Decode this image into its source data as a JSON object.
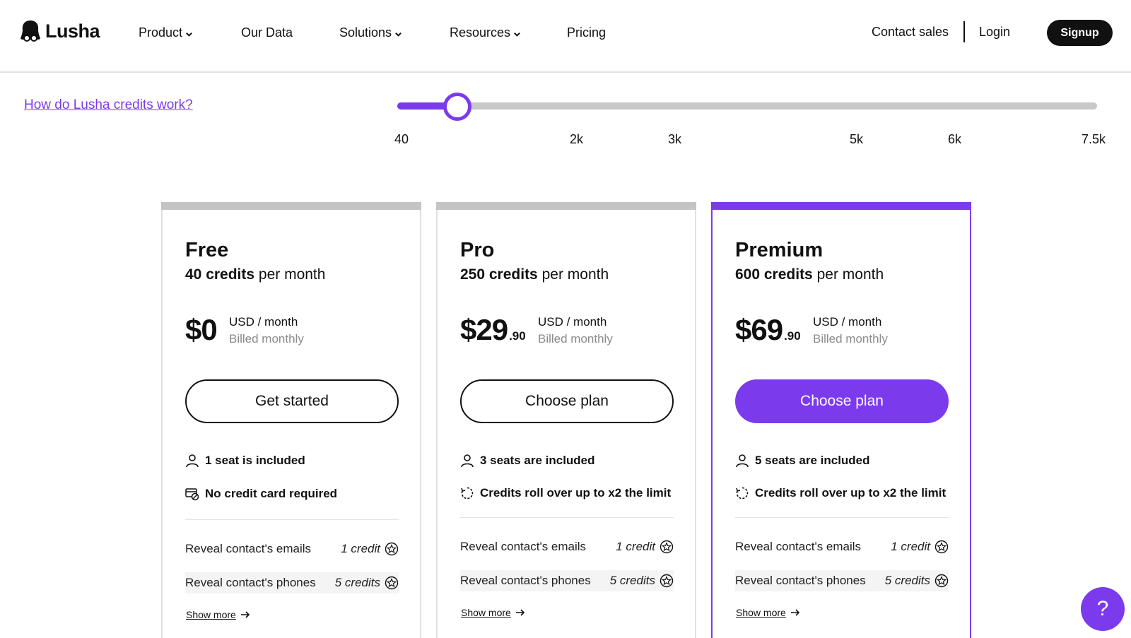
{
  "brand": {
    "name": "Lusha",
    "accent": "#7c3aed"
  },
  "nav": {
    "items": [
      {
        "label": "Product",
        "has_dropdown": true
      },
      {
        "label": "Our Data",
        "has_dropdown": false
      },
      {
        "label": "Solutions",
        "has_dropdown": true
      },
      {
        "label": "Resources",
        "has_dropdown": true
      },
      {
        "label": "Pricing",
        "has_dropdown": false
      }
    ],
    "contact_sales": "Contact sales",
    "login": "Login",
    "signup": "Signup"
  },
  "credits": {
    "link": "How do Lusha credits work?",
    "ticks": [
      "40",
      "2k",
      "3k",
      "5k",
      "6k",
      "7.5k"
    ],
    "slider_value_fraction": 0.08
  },
  "plans": [
    {
      "name": "Free",
      "credits_amount": "40 credits",
      "credits_period": " per month",
      "price": "$0",
      "cents": "",
      "unit": "USD / month",
      "billing": "Billed monthly",
      "cta": "Get started",
      "features": [
        {
          "icon": "user-icon",
          "text": "1 seat is included"
        },
        {
          "icon": "no-credit-card-icon",
          "text": "No credit card required"
        }
      ],
      "rows": [
        {
          "label": "Reveal contact's emails",
          "value": "1 credit"
        },
        {
          "label": "Reveal contact's phones",
          "value": "5 credits"
        }
      ],
      "show_more": "Show more"
    },
    {
      "name": "Pro",
      "credits_amount": "250 credits",
      "credits_period": " per month",
      "price": "$29",
      "cents": ".90",
      "unit": "USD / month",
      "billing": "Billed monthly",
      "cta": "Choose plan",
      "features": [
        {
          "icon": "user-icon",
          "text": "3 seats are included"
        },
        {
          "icon": "rollover-icon",
          "text": "Credits roll over up to x2 the limit"
        }
      ],
      "rows": [
        {
          "label": "Reveal contact's emails",
          "value": "1 credit"
        },
        {
          "label": "Reveal contact's phones",
          "value": "5 credits"
        }
      ],
      "show_more": "Show more"
    },
    {
      "name": "Premium",
      "credits_amount": "600 credits",
      "credits_period": " per month",
      "price": "$69",
      "cents": ".90",
      "unit": "USD / month",
      "billing": "Billed monthly",
      "cta": "Choose plan",
      "features": [
        {
          "icon": "user-icon",
          "text": "5 seats are included"
        },
        {
          "icon": "rollover-icon",
          "text": "Credits roll over up to x2 the limit"
        }
      ],
      "rows": [
        {
          "label": "Reveal contact's emails",
          "value": "1 credit"
        },
        {
          "label": "Reveal contact's phones",
          "value": "5 credits"
        }
      ],
      "show_more": "Show more"
    }
  ],
  "help": {
    "label": "?"
  }
}
